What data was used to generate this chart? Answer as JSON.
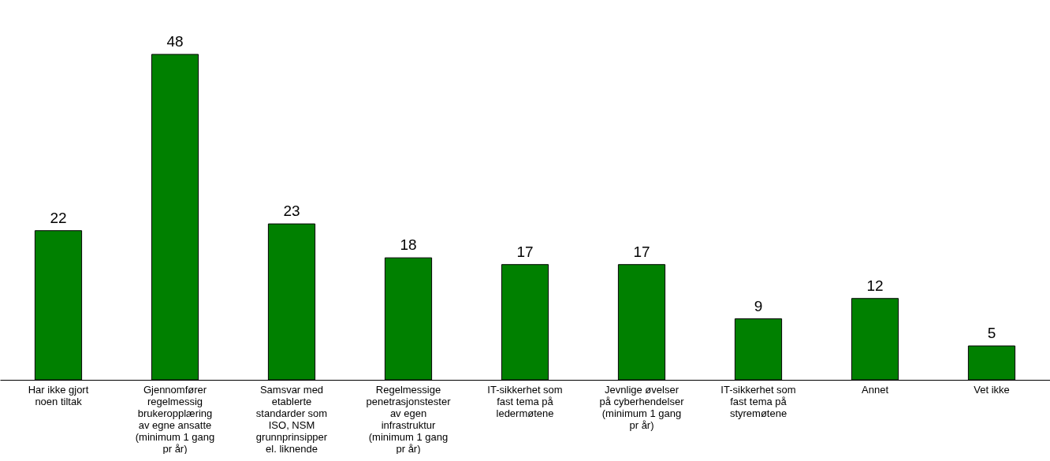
{
  "chart_data": {
    "type": "bar",
    "categories": [
      "Har ikke gjort noen tiltak",
      "Gjennomfører regelmessig brukeropplæring av egne ansatte (minimum 1 gang pr år)",
      "Samsvar med etablerte standarder som ISO, NSM grunnprinsipper el. liknende",
      "Regelmessige penetrasjonstester av egen infrastruktur (minimum 1 gang pr år)",
      "IT-sikkerhet som fast tema på ledermøtene",
      "Jevnlige øvelser på cyberhendelser (minimum 1 gang pr år)",
      "IT-sikkerhet som fast tema på styremøtene",
      "Annet",
      "Vet ikke"
    ],
    "values": [
      22,
      48,
      23,
      18,
      17,
      17,
      9,
      12,
      5
    ],
    "color": "#008000",
    "data_labels": true,
    "grid": false
  }
}
